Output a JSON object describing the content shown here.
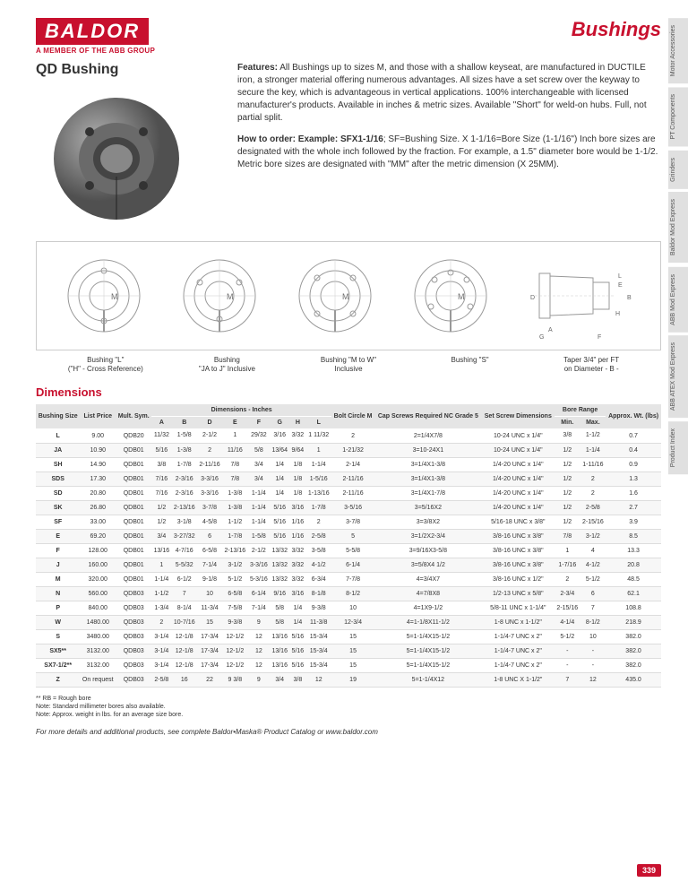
{
  "brand": {
    "logo": "BALDOR",
    "subtitle": "A MEMBER OF THE ABB GROUP"
  },
  "pageTitle": "Bushings",
  "productTitle": "QD Bushing",
  "features": {
    "label": "Features:",
    "text": " All Bushings up to sizes M, and those with a shallow keyseat, are manufactured in DUCTILE iron, a stronger material offering numerous advantages. All sizes have a set screw over the keyway to secure the key, which is advantageous in vertical applications. 100% interchangeable with licensed manufacturer's products. Available in inches & metric sizes. Available \"Short\" for weld-on hubs. Full, not partial split."
  },
  "howto": {
    "label": "How to order: Example: SFX1-1/16",
    "text": "; SF=Bushing Size. X 1-1/16=Bore Size (1-1/16\") Inch bore sizes are designated with the whole inch followed by the fraction. For example, a 1.5\" diameter bore would be 1-1/2. Metric bore sizes are designated with \"MM\" after the metric dimension (X 25MM)."
  },
  "diagramLabels": [
    {
      "l1": "Bushing \"L\"",
      "l2": "(\"H\" - Cross Reference)"
    },
    {
      "l1": "Bushing",
      "l2": "\"JA to J\" Inclusive"
    },
    {
      "l1": "Bushing \"M to W\"",
      "l2": "Inclusive"
    },
    {
      "l1": "Bushing \"S\"",
      "l2": ""
    },
    {
      "l1": "Taper 3/4\" per FT",
      "l2": "on Diameter - B -"
    }
  ],
  "sectionTitle": "Dimensions",
  "table": {
    "headerTop": {
      "bushingSize": "Bushing Size",
      "listPrice": "List Price",
      "multSym": "Mult. Sym.",
      "dimInches": "Dimensions - Inches",
      "boltCircle": "Bolt Circle M",
      "capScrews": "Cap Screws Required NC Grade 5",
      "setScrew": "Set Screw Dimensions",
      "boreRange": "Bore Range",
      "approxWt": "Approx. Wt. (lbs)"
    },
    "headerDim": [
      "A",
      "B",
      "D",
      "E",
      "F",
      "G",
      "H",
      "L"
    ],
    "headerBore": [
      "Min.",
      "Max."
    ],
    "rows": [
      [
        "L",
        "9.00",
        "QDB20",
        "11/32",
        "1-5/8",
        "2-1/2",
        "1",
        "29/32",
        "3/16",
        "3/32",
        "1 11/32",
        "2",
        "2=1/4X7/8",
        "10-24 UNC x 1/4\"",
        "3/8",
        "1-1/2",
        "0.7"
      ],
      [
        "JA",
        "10.90",
        "QDB01",
        "5/16",
        "1-3/8",
        "2",
        "11/16",
        "5/8",
        "13/64",
        "9/64",
        "1",
        "1-21/32",
        "3=10-24X1",
        "10-24 UNC x 1/4\"",
        "1/2",
        "1-1/4",
        "0.4"
      ],
      [
        "SH",
        "14.90",
        "QDB01",
        "3/8",
        "1-7/8",
        "2-11/16",
        "7/8",
        "3/4",
        "1/4",
        "1/8",
        "1-1/4",
        "2-1/4",
        "3=1/4X1-3/8",
        "1/4-20 UNC x 1/4\"",
        "1/2",
        "1-11/16",
        "0.9"
      ],
      [
        "SDS",
        "17.30",
        "QDB01",
        "7/16",
        "2-3/16",
        "3-3/16",
        "7/8",
        "3/4",
        "1/4",
        "1/8",
        "1-5/16",
        "2-11/16",
        "3=1/4X1-3/8",
        "1/4-20 UNC x 1/4\"",
        "1/2",
        "2",
        "1.3"
      ],
      [
        "SD",
        "20.80",
        "QDB01",
        "7/16",
        "2-3/16",
        "3-3/16",
        "1-3/8",
        "1-1/4",
        "1/4",
        "1/8",
        "1-13/16",
        "2-11/16",
        "3=1/4X1-7/8",
        "1/4-20 UNC x 1/4\"",
        "1/2",
        "2",
        "1.6"
      ],
      [
        "SK",
        "26.80",
        "QDB01",
        "1/2",
        "2-13/16",
        "3-7/8",
        "1-3/8",
        "1-1/4",
        "5/16",
        "3/16",
        "1-7/8",
        "3-5/16",
        "3=5/16X2",
        "1/4-20 UNC x 1/4\"",
        "1/2",
        "2-5/8",
        "2.7"
      ],
      [
        "SF",
        "33.00",
        "QDB01",
        "1/2",
        "3-1/8",
        "4-5/8",
        "1-1/2",
        "1-1/4",
        "5/16",
        "1/16",
        "2",
        "3-7/8",
        "3=3/8X2",
        "5/16-18 UNC x 3/8\"",
        "1/2",
        "2-15/16",
        "3.9"
      ],
      [
        "E",
        "69.20",
        "QDB01",
        "3/4",
        "3-27/32",
        "6",
        "1-7/8",
        "1-5/8",
        "5/16",
        "1/16",
        "2-5/8",
        "5",
        "3=1/2X2-3/4",
        "3/8-16 UNC x 3/8\"",
        "7/8",
        "3-1/2",
        "8.5"
      ],
      [
        "F",
        "128.00",
        "QDB01",
        "13/16",
        "4-7/16",
        "6-5/8",
        "2-13/16",
        "2-1/2",
        "13/32",
        "3/32",
        "3-5/8",
        "5-5/8",
        "3=9/16X3-5/8",
        "3/8-16 UNC x 3/8\"",
        "1",
        "4",
        "13.3"
      ],
      [
        "J",
        "160.00",
        "QDB01",
        "1",
        "5-5/32",
        "7-1/4",
        "3-1/2",
        "3-3/16",
        "13/32",
        "3/32",
        "4-1/2",
        "6-1/4",
        "3=5/8X4 1/2",
        "3/8-16 UNC x 3/8\"",
        "1-7/16",
        "4-1/2",
        "20.8"
      ],
      [
        "M",
        "320.00",
        "QDB01",
        "1-1/4",
        "6-1/2",
        "9-1/8",
        "5-1/2",
        "5-3/16",
        "13/32",
        "3/32",
        "6-3/4",
        "7-7/8",
        "4=3/4X7",
        "3/8-16 UNC x 1/2\"",
        "2",
        "5-1/2",
        "48.5"
      ],
      [
        "N",
        "560.00",
        "QDB03",
        "1-1/2",
        "7",
        "10",
        "6-5/8",
        "6-1/4",
        "9/16",
        "3/16",
        "8-1/8",
        "8-1/2",
        "4=7/8X8",
        "1/2-13 UNC x 5/8\"",
        "2-3/4",
        "6",
        "62.1"
      ],
      [
        "P",
        "840.00",
        "QDB03",
        "1-3/4",
        "8-1/4",
        "11-3/4",
        "7-5/8",
        "7-1/4",
        "5/8",
        "1/4",
        "9-3/8",
        "10",
        "4=1X9-1/2",
        "5/8-11 UNC x 1-1/4\"",
        "2-15/16",
        "7",
        "108.8"
      ],
      [
        "W",
        "1480.00",
        "QDB03",
        "2",
        "10-7/16",
        "15",
        "9-3/8",
        "9",
        "5/8",
        "1/4",
        "11-3/8",
        "12-3/4",
        "4=1-1/8X11-1/2",
        "1-8 UNC x 1-1/2\"",
        "4-1/4",
        "8-1/2",
        "218.9"
      ],
      [
        "S",
        "3480.00",
        "QDB03",
        "3-1/4",
        "12-1/8",
        "17-3/4",
        "12-1/2",
        "12",
        "13/16",
        "5/16",
        "15-3/4",
        "15",
        "5=1-1/4X15-1/2",
        "1-1/4-7 UNC x 2\"",
        "5-1/2",
        "10",
        "382.0"
      ],
      [
        "SX5**",
        "3132.00",
        "QDB03",
        "3-1/4",
        "12-1/8",
        "17-3/4",
        "12-1/2",
        "12",
        "13/16",
        "5/16",
        "15-3/4",
        "15",
        "5=1-1/4X15-1/2",
        "1-1/4-7 UNC x 2\"",
        "-",
        "-",
        "382.0"
      ],
      [
        "SX7-1/2**",
        "3132.00",
        "QDB03",
        "3-1/4",
        "12-1/8",
        "17-3/4",
        "12-1/2",
        "12",
        "13/16",
        "5/16",
        "15-3/4",
        "15",
        "5=1-1/4X15-1/2",
        "1-1/4-7 UNC x 2\"",
        "-",
        "-",
        "382.0"
      ],
      [
        "Z",
        "On request",
        "QDB03",
        "2-5/8",
        "16",
        "22",
        "9 3/8",
        "9",
        "3/4",
        "3/8",
        "12",
        "19",
        "5=1-1/4X12",
        "1-8 UNC X 1-1/2\"",
        "7",
        "12",
        "435.0"
      ]
    ]
  },
  "footnotes": [
    "** RB = Rough bore",
    "Note: Standard millimeter bores also available.",
    "Note: Approx. weight in lbs. for an average size bore."
  ],
  "footerLine": "For more details and additional products, see complete Baldor•Maska® Product Catalog or www.baldor.com",
  "pageNum": "339",
  "sideTabs": [
    "Motor Accessories",
    "PT Components",
    "Grinders",
    "Baldor Mod Express",
    "ABB Mod Express",
    "ABB ATEX Mod Express",
    "Product Index"
  ]
}
